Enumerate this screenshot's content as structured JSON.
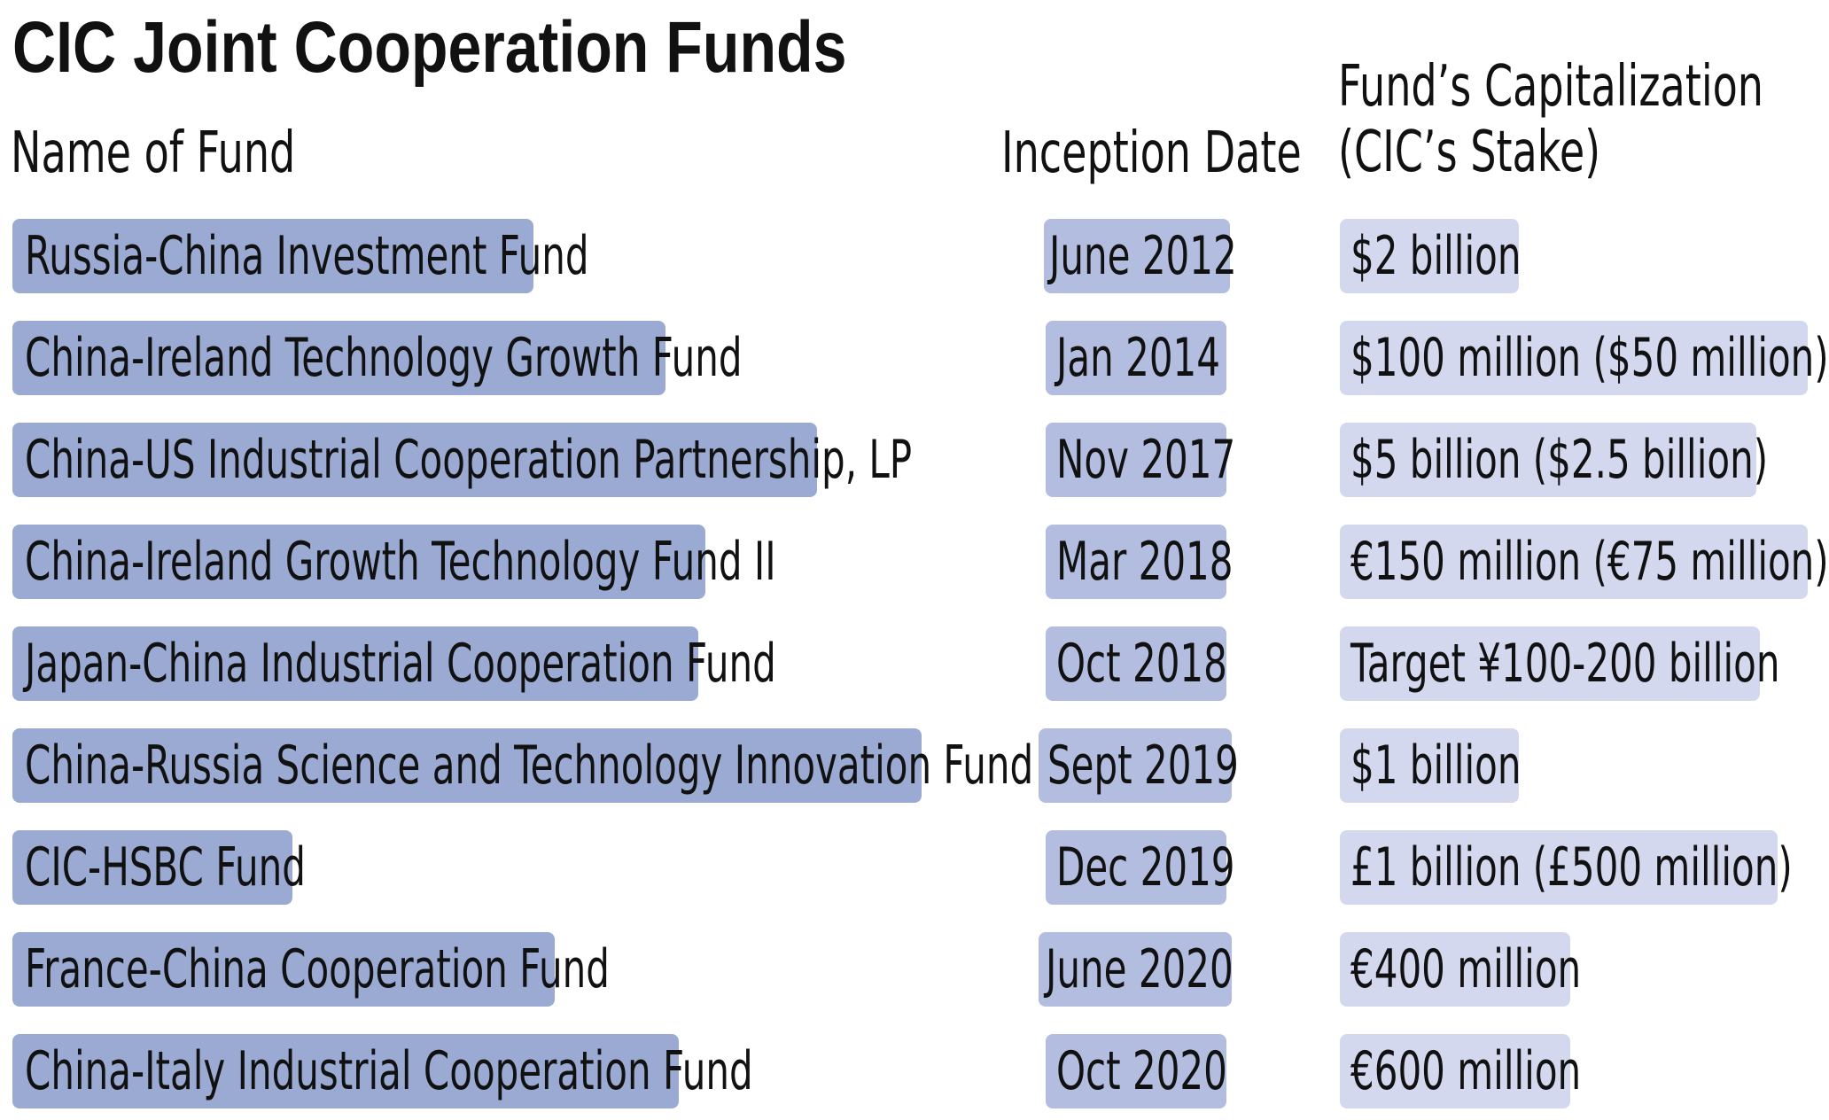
{
  "title": "CIC Joint Cooperation Funds",
  "headers": {
    "name": "Name of Fund",
    "date": "Inception Date",
    "cap_line1": "Fund’s Capitalization",
    "cap_line2": "(CIC’s Stake)"
  },
  "funds": [
    {
      "name": "Russia-China Investment Fund",
      "date": "June 2012",
      "cap": "$2 billion"
    },
    {
      "name": "China-Ireland Technology Growth Fund",
      "date": "Jan 2014",
      "cap": "$100 million ($50 million)"
    },
    {
      "name": "China-US Industrial Cooperation Partnership, LP",
      "date": "Nov 2017",
      "cap": "$5 billion ($2.5 billion)"
    },
    {
      "name": "China-Ireland Growth Technology Fund II",
      "date": "Mar 2018",
      "cap": "€150 million (€75 million)"
    },
    {
      "name": "Japan-China Industrial Cooperation Fund",
      "date": "Oct 2018",
      "cap": "Target ¥100-200 billion"
    },
    {
      "name": "China-Russia Science and Technology Innovation Fund",
      "date": "Sept 2019",
      "cap": "$1 billion"
    },
    {
      "name": "CIC-HSBC Fund",
      "date": "Dec 2019",
      "cap": "£1 billion (£500 million)"
    },
    {
      "name": "France-China Cooperation Fund",
      "date": "June 2020",
      "cap": "€400 million"
    },
    {
      "name": "China-Italy Industrial Cooperation Fund",
      "date": "Oct 2020",
      "cap": "€600 million"
    }
  ],
  "colors": {
    "name_pill": "#9aaad2",
    "date_pill": "#b3bde0",
    "cap_pill": "#d3d8ee",
    "text": "#111111"
  }
}
